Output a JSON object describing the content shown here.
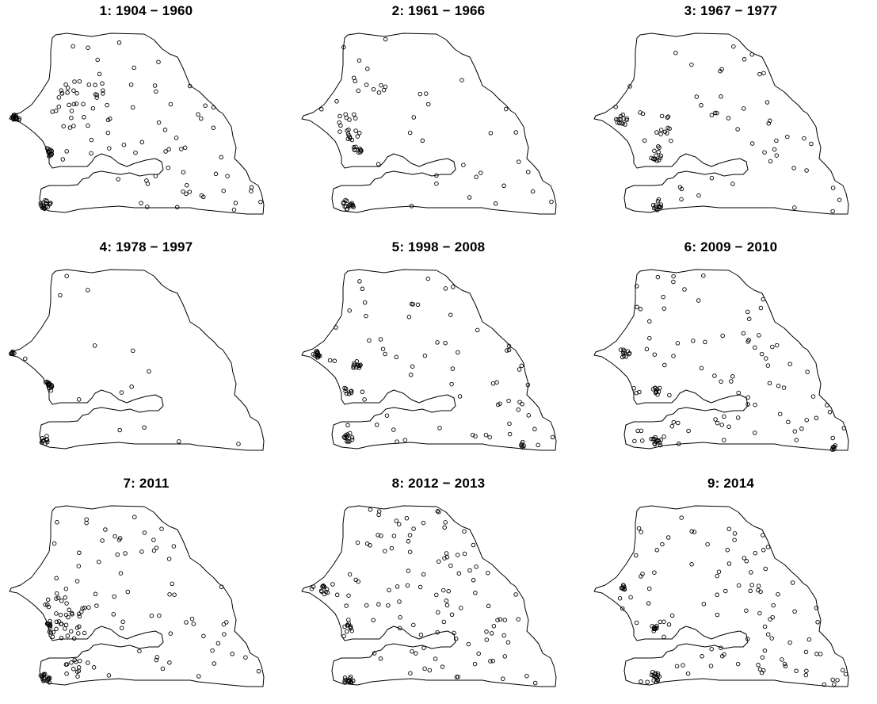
{
  "figure": {
    "background": "#ffffff",
    "outline_color": "#000000",
    "point_color": "#000000",
    "point_style": "open-circle"
  },
  "panels": [
    {
      "title": "1: 1904 − 1960"
    },
    {
      "title": "2: 1961 − 1966"
    },
    {
      "title": "3: 1967 − 1977"
    },
    {
      "title": "4: 1978 − 1997"
    },
    {
      "title": "5: 1998 − 2008"
    },
    {
      "title": "6: 2009 − 2010"
    },
    {
      "title": "7: 2011"
    },
    {
      "title": "8: 2012 − 2013"
    },
    {
      "title": "9: 2014"
    }
  ]
}
